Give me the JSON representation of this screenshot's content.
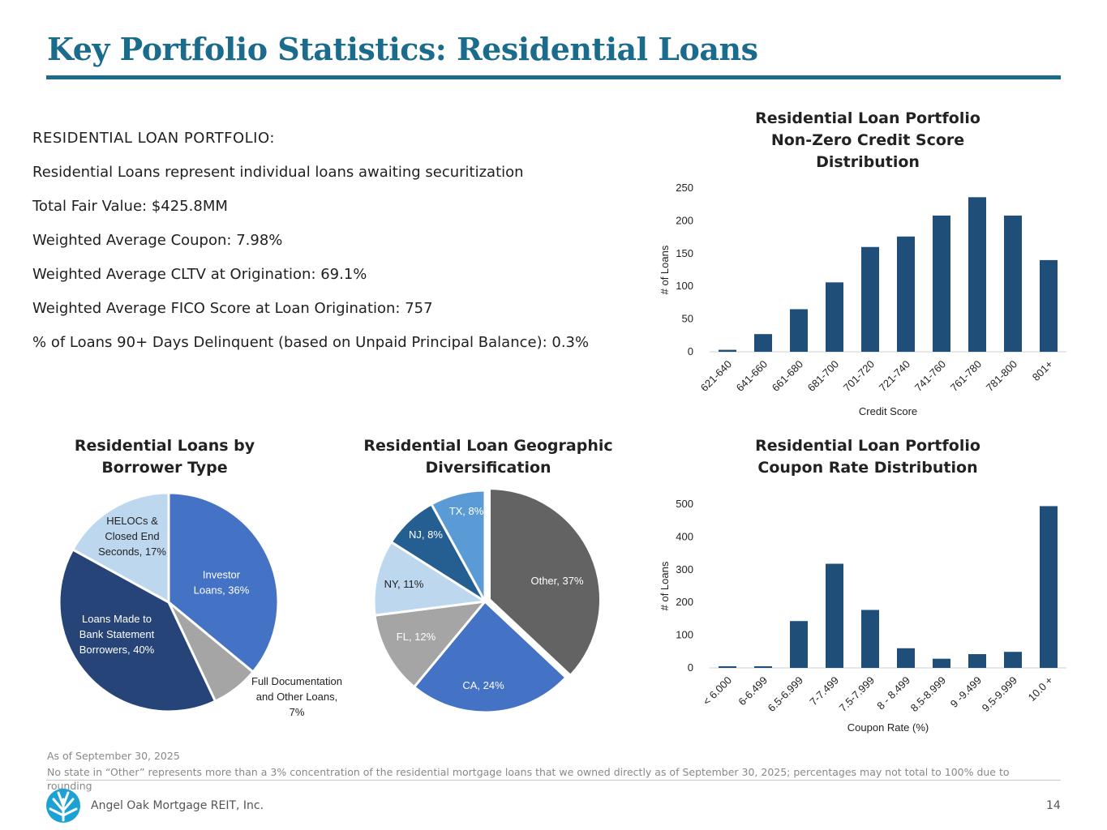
{
  "page": {
    "title": "Key Portfolio Statistics: Residential Loans",
    "accent_color": "#1a6b8c",
    "page_number": "14",
    "company": "Angel Oak Mortgage REIT, Inc."
  },
  "stats": {
    "heading": "RESIDENTIAL LOAN PORTFOLIO:",
    "lines": [
      "Residential Loans represent individual loans awaiting securitization",
      "Total Fair Value: $425.8MM",
      "Weighted Average Coupon: 7.98%",
      "Weighted Average CLTV at Origination: 69.1%",
      "Weighted Average FICO Score at Loan Origination: 757",
      "% of Loans 90+ Days Delinquent (based on Unpaid Principal Balance): 0.3%"
    ]
  },
  "footer": {
    "as_of": "As of September 30, 2025",
    "note": "No state in “Other” represents more than a 3% concentration of the residential mortgage loans that we owned directly as of September 30, 2025; percentages may not total to 100% due to rounding"
  },
  "chart_data": [
    {
      "id": "credit",
      "type": "bar",
      "title_lines": [
        "Residential Loan Portfolio",
        "Non-Zero Credit Score",
        "Distribution"
      ],
      "categories": [
        "621-640",
        "641-660",
        "661-680",
        "681-700",
        "701-720",
        "721-740",
        "741-760",
        "761-780",
        "781-800",
        "801+"
      ],
      "values": [
        3,
        27,
        65,
        106,
        160,
        176,
        208,
        236,
        208,
        140
      ],
      "xlabel": "Credit Score",
      "ylabel": "# of Loans",
      "ylim": [
        0,
        250
      ],
      "yticks": [
        0,
        50,
        100,
        150,
        200,
        250
      ],
      "color": "#1f4e79"
    },
    {
      "id": "coupon",
      "type": "bar",
      "title_lines": [
        "Residential Loan Portfolio",
        "Coupon Rate Distribution"
      ],
      "categories": [
        "< 6.000",
        "6-6.499",
        "6.5-6.999",
        "7-7.499",
        "7.5-7.999",
        "8 - 8.499",
        "8.5-8.999",
        "9 -9.499",
        "9.5-9.999",
        "10.0 +"
      ],
      "values": [
        5,
        5,
        143,
        318,
        177,
        60,
        28,
        42,
        49,
        494
      ],
      "xlabel": "Coupon Rate (%)",
      "ylabel": "# of Loans",
      "ylim": [
        0,
        500
      ],
      "yticks": [
        0,
        100,
        200,
        300,
        400,
        500
      ],
      "color": "#1f4e79"
    },
    {
      "id": "borrower",
      "type": "pie",
      "title_lines": [
        "Residential Loans by",
        "Borrower Type"
      ],
      "slices": [
        {
          "label": [
            "Investor",
            "Loans, 36%"
          ],
          "value": 36,
          "color": "#4472c4",
          "text_color": "#ffffff"
        },
        {
          "label": [
            "Full Documentation",
            "and Other Loans,",
            "7%"
          ],
          "value": 7,
          "color": "#a5a5a5",
          "text_color": "#222222"
        },
        {
          "label": [
            "Loans Made to",
            "Bank Statement",
            "Borrowers, 40%"
          ],
          "value": 40,
          "color": "#264478",
          "text_color": "#ffffff"
        },
        {
          "label": [
            "HELOCs &",
            "Closed End",
            "Seconds, 17%"
          ],
          "value": 17,
          "color": "#bdd7ee",
          "text_color": "#222222"
        }
      ]
    },
    {
      "id": "geo",
      "type": "pie",
      "title_lines": [
        "Residential Loan Geographic",
        "Diversification"
      ],
      "slices": [
        {
          "label": [
            "Other, 37%"
          ],
          "value": 37,
          "color": "#636363",
          "text_color": "#ffffff"
        },
        {
          "label": [
            "CA, 24%"
          ],
          "value": 24,
          "color": "#4472c4",
          "text_color": "#ffffff"
        },
        {
          "label": [
            "FL, 12%"
          ],
          "value": 12,
          "color": "#a5a5a5",
          "text_color": "#ffffff"
        },
        {
          "label": [
            "NY, 11%"
          ],
          "value": 11,
          "color": "#bdd7ee",
          "text_color": "#222222"
        },
        {
          "label": [
            "NJ, 8%"
          ],
          "value": 8,
          "color": "#255e91",
          "text_color": "#ffffff"
        },
        {
          "label": [
            "TX, 8%"
          ],
          "value": 8,
          "color": "#5b9bd5",
          "text_color": "#ffffff"
        }
      ]
    }
  ]
}
